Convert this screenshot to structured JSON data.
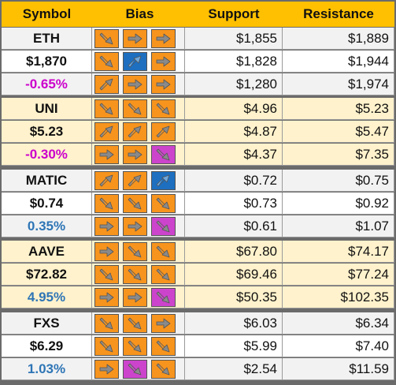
{
  "header": {
    "symbol": "Symbol",
    "bias": "Bias",
    "support": "Support",
    "resistance": "Resistance"
  },
  "colors": {
    "header": "#fec000",
    "row_light": "#f2f2f2",
    "row_dark": "#ffffff",
    "row_yellow": "#fff2cc",
    "arrow_orange": "#f7941d",
    "arrow_blue": "#1e6fbf",
    "arrow_magenta": "#cc44cc",
    "positive": "#2e75b6",
    "negative": "#cc00cc"
  },
  "assets": [
    {
      "rows": [
        {
          "label": "ETH",
          "tone": "",
          "bias": [
            {
              "dir": "down-right",
              "color": "orange"
            },
            {
              "dir": "right",
              "color": "orange"
            },
            {
              "dir": "right",
              "color": "orange"
            }
          ],
          "support": "$1,855",
          "resistance": "$1,889"
        },
        {
          "label": "$1,870",
          "tone": "",
          "bias": [
            {
              "dir": "down-right",
              "color": "orange"
            },
            {
              "dir": "up-right",
              "color": "blue"
            },
            {
              "dir": "right",
              "color": "orange"
            }
          ],
          "support": "$1,828",
          "resistance": "$1,944"
        },
        {
          "label": "-0.65%",
          "tone": "neg",
          "bias": [
            {
              "dir": "up-right",
              "color": "orange"
            },
            {
              "dir": "right",
              "color": "orange"
            },
            {
              "dir": "right",
              "color": "orange"
            }
          ],
          "support": "$1,280",
          "resistance": "$1,974"
        }
      ]
    },
    {
      "rows": [
        {
          "label": "UNI",
          "tone": "",
          "bias": [
            {
              "dir": "down-right",
              "color": "orange"
            },
            {
              "dir": "down-right",
              "color": "orange"
            },
            {
              "dir": "down-right",
              "color": "orange"
            }
          ],
          "support": "$4.96",
          "resistance": "$5.23"
        },
        {
          "label": "$5.23",
          "tone": "",
          "bias": [
            {
              "dir": "up-right",
              "color": "orange"
            },
            {
              "dir": "up-right",
              "color": "orange"
            },
            {
              "dir": "up-right",
              "color": "orange"
            }
          ],
          "support": "$4.87",
          "resistance": "$5.47"
        },
        {
          "label": "-0.30%",
          "tone": "neg",
          "bias": [
            {
              "dir": "right",
              "color": "orange"
            },
            {
              "dir": "right",
              "color": "orange"
            },
            {
              "dir": "down-right",
              "color": "magenta"
            }
          ],
          "support": "$4.37",
          "resistance": "$7.35"
        }
      ]
    },
    {
      "rows": [
        {
          "label": "MATIC",
          "tone": "",
          "bias": [
            {
              "dir": "up-right",
              "color": "orange"
            },
            {
              "dir": "up-right",
              "color": "orange"
            },
            {
              "dir": "up-right",
              "color": "blue"
            }
          ],
          "support": "$0.72",
          "resistance": "$0.75"
        },
        {
          "label": "$0.74",
          "tone": "",
          "bias": [
            {
              "dir": "down-right",
              "color": "orange"
            },
            {
              "dir": "down-right",
              "color": "orange"
            },
            {
              "dir": "down-right",
              "color": "orange"
            }
          ],
          "support": "$0.73",
          "resistance": "$0.92"
        },
        {
          "label": "0.35%",
          "tone": "pos",
          "bias": [
            {
              "dir": "right",
              "color": "orange"
            },
            {
              "dir": "right",
              "color": "orange"
            },
            {
              "dir": "down-right",
              "color": "magenta"
            }
          ],
          "support": "$0.61",
          "resistance": "$1.07"
        }
      ]
    },
    {
      "rows": [
        {
          "label": "AAVE",
          "tone": "",
          "bias": [
            {
              "dir": "right",
              "color": "orange"
            },
            {
              "dir": "down-right",
              "color": "orange"
            },
            {
              "dir": "down-right",
              "color": "orange"
            }
          ],
          "support": "$67.80",
          "resistance": "$74.17"
        },
        {
          "label": "$72.82",
          "tone": "",
          "bias": [
            {
              "dir": "down-right",
              "color": "orange"
            },
            {
              "dir": "down-right",
              "color": "orange"
            },
            {
              "dir": "down-right",
              "color": "orange"
            }
          ],
          "support": "$69.46",
          "resistance": "$77.24"
        },
        {
          "label": "4.95%",
          "tone": "pos",
          "bias": [
            {
              "dir": "right",
              "color": "orange"
            },
            {
              "dir": "right",
              "color": "orange"
            },
            {
              "dir": "down-right",
              "color": "magenta"
            }
          ],
          "support": "$50.35",
          "resistance": "$102.35"
        }
      ]
    },
    {
      "rows": [
        {
          "label": "FXS",
          "tone": "",
          "bias": [
            {
              "dir": "down-right",
              "color": "orange"
            },
            {
              "dir": "down-right",
              "color": "orange"
            },
            {
              "dir": "right",
              "color": "orange"
            }
          ],
          "support": "$6.03",
          "resistance": "$6.34"
        },
        {
          "label": "$6.29",
          "tone": "",
          "bias": [
            {
              "dir": "down-right",
              "color": "orange"
            },
            {
              "dir": "down-right",
              "color": "orange"
            },
            {
              "dir": "down-right",
              "color": "orange"
            }
          ],
          "support": "$5.99",
          "resistance": "$7.40"
        },
        {
          "label": "1.03%",
          "tone": "pos",
          "bias": [
            {
              "dir": "right",
              "color": "orange"
            },
            {
              "dir": "down-right",
              "color": "magenta"
            },
            {
              "dir": "down-right",
              "color": "orange"
            }
          ],
          "support": "$2.54",
          "resistance": "$11.59"
        }
      ]
    }
  ]
}
